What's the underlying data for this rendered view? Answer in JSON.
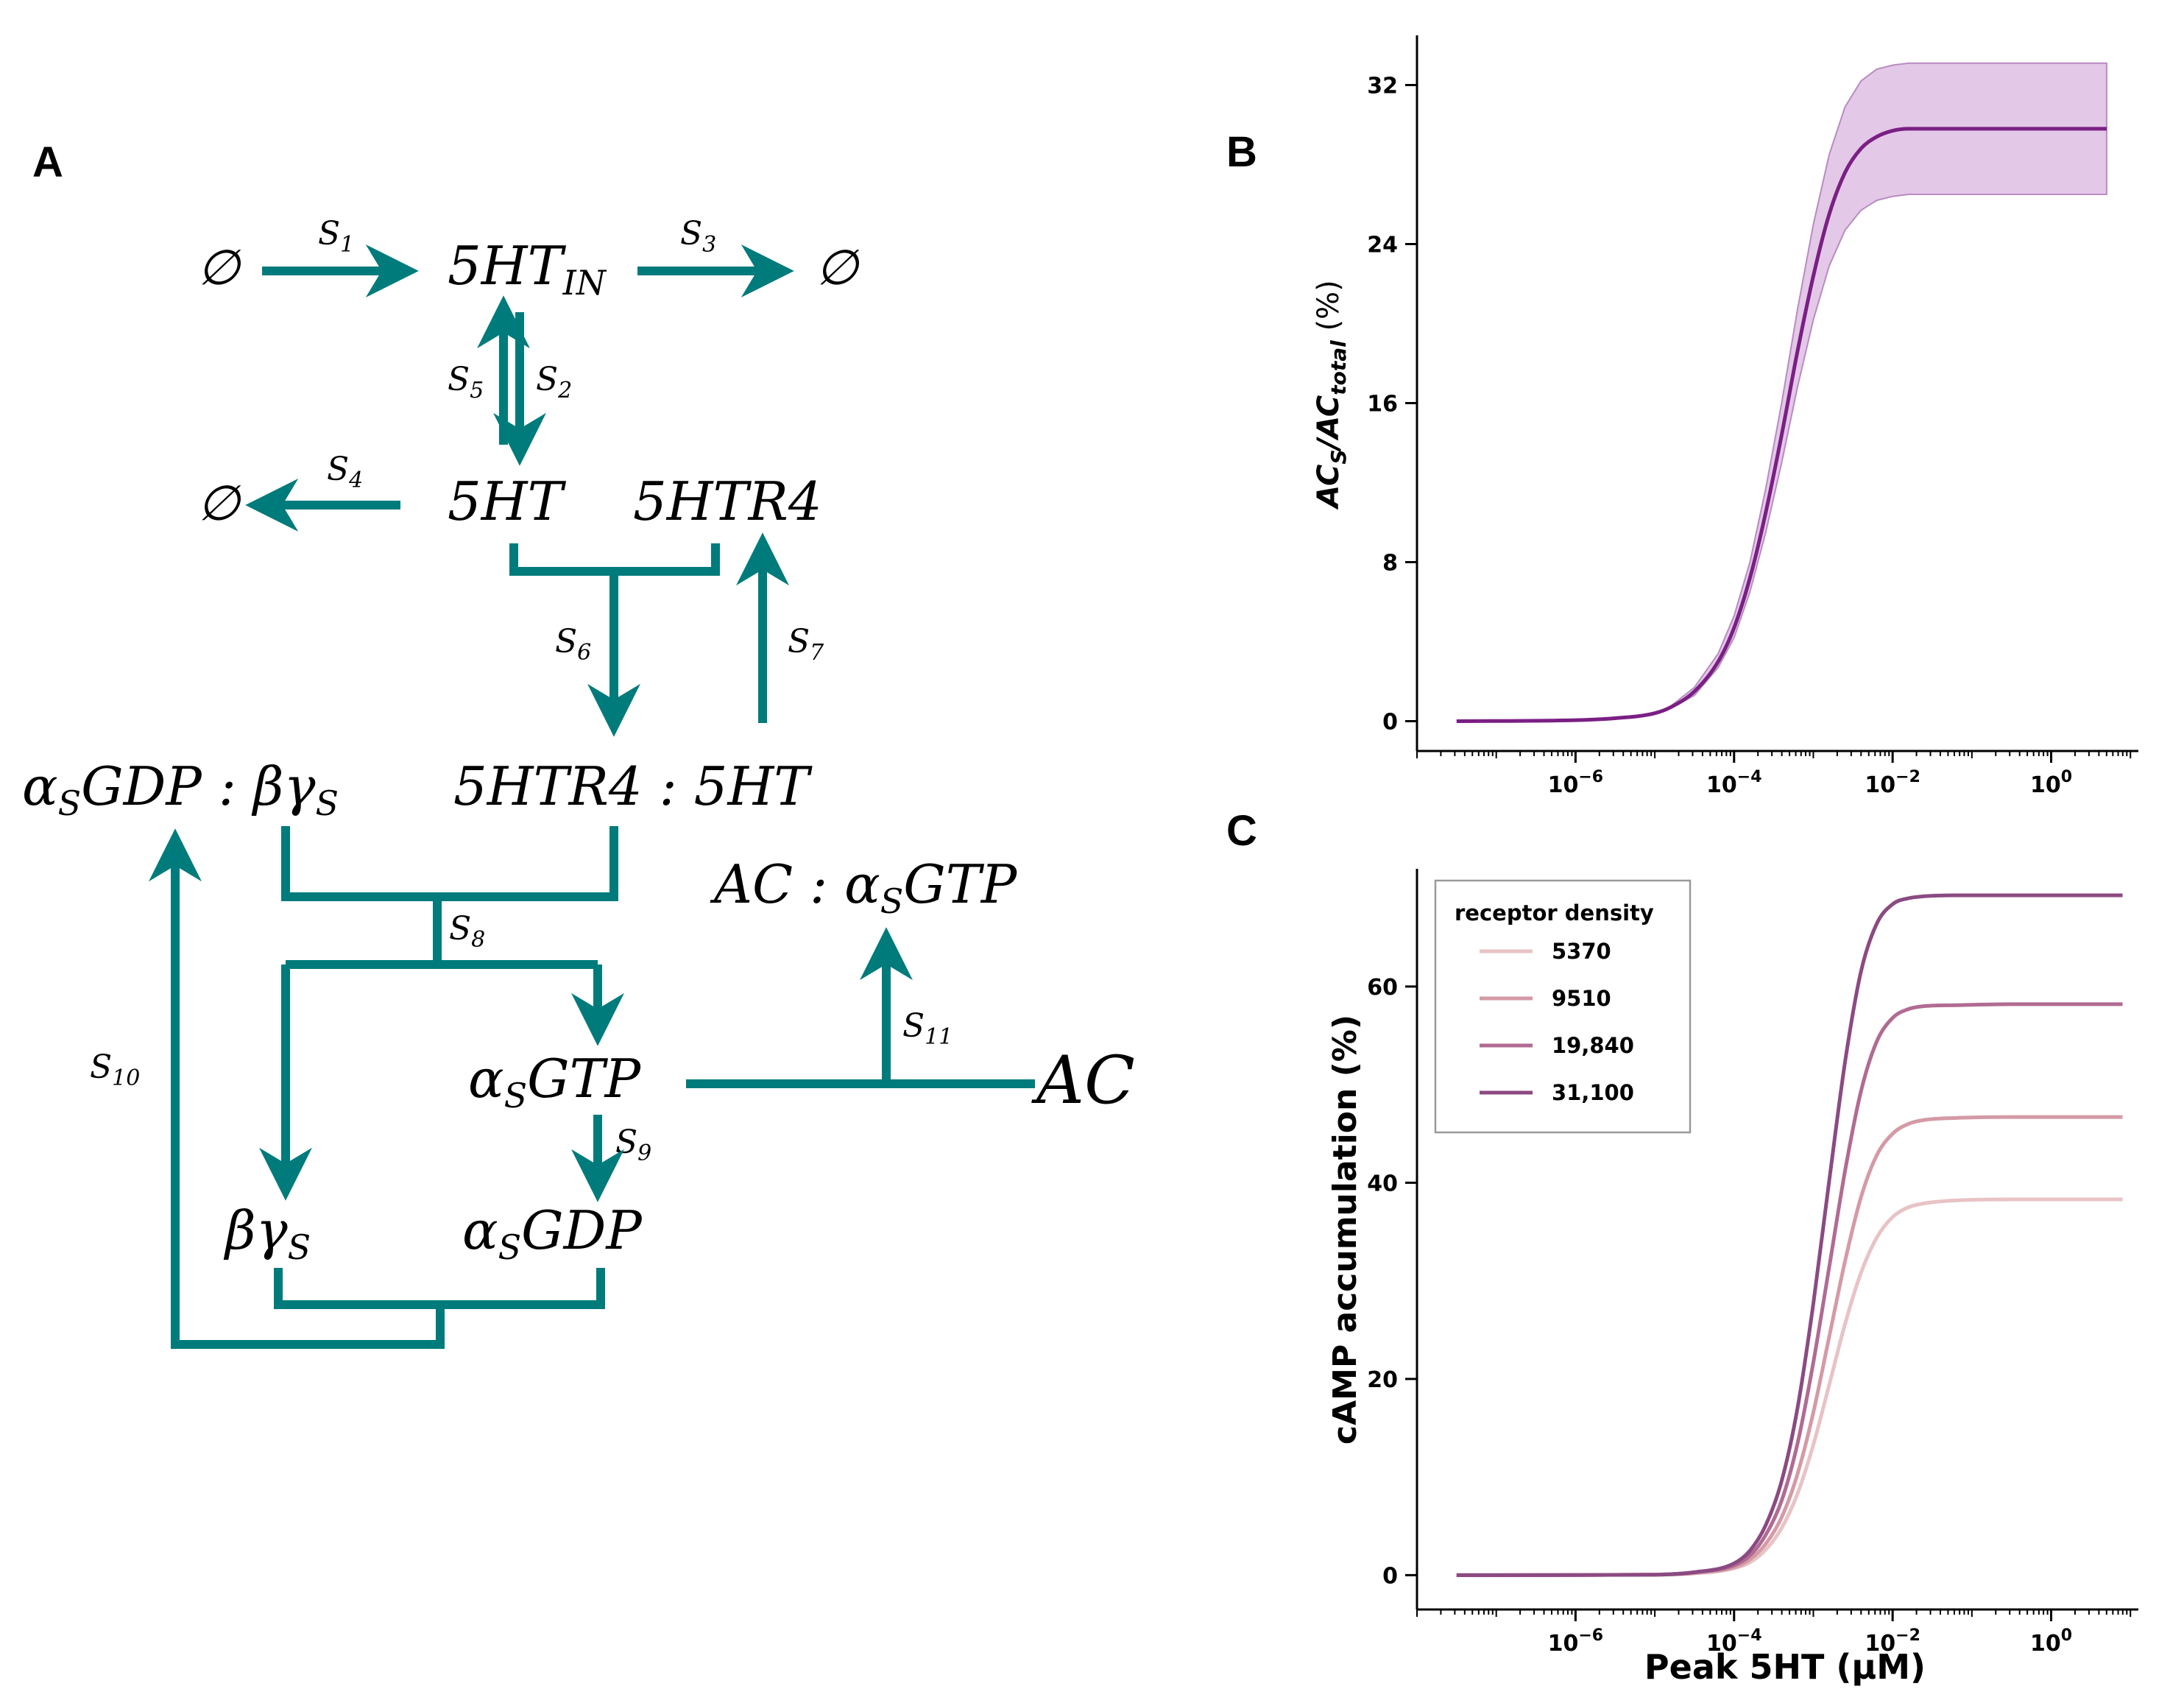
{
  "panels": {
    "a": "A",
    "b": "B",
    "c": "C"
  },
  "diagram": {
    "color": "#007b7b",
    "species": {
      "empty_left_top": "∅",
      "empty_right_top": "∅",
      "empty_left_mid": "∅",
      "ht_in": "5HT",
      "ht_in_sub": "IN",
      "ht": "5HT",
      "htr4": "5HTR4",
      "gdp_bg_a": "α",
      "gdp_bg_sub1": "S",
      "gdp_bg_b": "GDP : βγ",
      "gdp_bg_sub2": "S",
      "htr4_ht": "5HTR4 : 5HT",
      "ac_gtp_a": "AC : α",
      "ac_gtp_sub": "S",
      "ac_gtp_b": "GTP",
      "gtp_a": "α",
      "gtp_sub": "S",
      "gtp_b": "GTP",
      "ac": "AC",
      "bg_a": "βγ",
      "bg_sub": "S",
      "gdp_a": "α",
      "gdp_sub": "S",
      "gdp_b": "GDP"
    },
    "rates": [
      {
        "s": "S",
        "n": "1"
      },
      {
        "s": "S",
        "n": "2"
      },
      {
        "s": "S",
        "n": "3"
      },
      {
        "s": "S",
        "n": "4"
      },
      {
        "s": "S",
        "n": "5"
      },
      {
        "s": "S",
        "n": "6"
      },
      {
        "s": "S",
        "n": "7"
      },
      {
        "s": "S",
        "n": "8"
      },
      {
        "s": "S",
        "n": "9"
      },
      {
        "s": "S",
        "n": "10"
      },
      {
        "s": "S",
        "n": "11"
      }
    ]
  },
  "chart_data": [
    {
      "panel": "B",
      "type": "line",
      "title": "",
      "xlabel": "",
      "ylabel_parts": {
        "ac": "AC",
        "sub1": "S",
        "slash": "/AC",
        "sub2": "total",
        "unit": " (%)"
      },
      "xscale": "log",
      "xlim_log10": [
        -8,
        1.1
      ],
      "ylim": [
        -1.5,
        34.5
      ],
      "yticks": [
        0,
        8,
        16,
        24,
        32
      ],
      "ytick_labels": [
        "0",
        "8",
        "16",
        "24",
        "32"
      ],
      "xticks_log10": [
        -6,
        -4,
        -2,
        0
      ],
      "xtick_labels": [
        {
          "base": "10",
          "exp": "−6"
        },
        {
          "base": "10",
          "exp": "−4"
        },
        {
          "base": "10",
          "exp": "−2"
        },
        {
          "base": "10",
          "exp": "0"
        }
      ],
      "color": "#7a1f84",
      "band_color": "#d9b5df",
      "series": {
        "x_log10": [
          -7.5,
          -6,
          -5.5,
          -5,
          -4.8,
          -4.5,
          -4.2,
          -4,
          -3.8,
          -3.6,
          -3.4,
          -3.2,
          -3,
          -2.8,
          -2.6,
          -2.4,
          -2.2,
          -2,
          -1.8,
          -1.6,
          -1.2,
          -0.5,
          0.5,
          0.7
        ],
        "y": [
          0,
          0.05,
          0.15,
          0.4,
          0.7,
          1.5,
          3.0,
          4.7,
          7.2,
          10.5,
          14.4,
          18.6,
          22.4,
          25.5,
          27.6,
          28.8,
          29.4,
          29.7,
          29.8,
          29.8,
          29.8,
          29.8,
          29.8,
          29.8
        ],
        "y_lower": [
          0,
          0.05,
          0.15,
          0.4,
          0.65,
          1.3,
          2.7,
          4.2,
          6.5,
          9.5,
          13.0,
          16.8,
          20.2,
          22.9,
          24.7,
          25.7,
          26.2,
          26.4,
          26.5,
          26.5,
          26.5,
          26.5,
          26.5,
          26.5
        ],
        "y_upper": [
          0,
          0.05,
          0.15,
          0.4,
          0.75,
          1.7,
          3.4,
          5.3,
          8.0,
          11.7,
          16.0,
          20.7,
          25.0,
          28.5,
          30.9,
          32.2,
          32.8,
          33.0,
          33.1,
          33.1,
          33.1,
          33.1,
          33.1,
          33.1
        ]
      }
    },
    {
      "panel": "C",
      "type": "line",
      "title": "",
      "xlabel": "Peak 5HT (μM)",
      "ylabel": "cAMP accumulation (%)",
      "xscale": "log",
      "xlim_log10": [
        -8,
        1.1
      ],
      "ylim": [
        -3.5,
        72
      ],
      "yticks": [
        0,
        20,
        40,
        60
      ],
      "ytick_labels": [
        "0",
        "20",
        "40",
        "60"
      ],
      "xticks_log10": [
        -6,
        -4,
        -2,
        0
      ],
      "xtick_labels": [
        {
          "base": "10",
          "exp": "−6"
        },
        {
          "base": "10",
          "exp": "−4"
        },
        {
          "base": "10",
          "exp": "−2"
        },
        {
          "base": "10",
          "exp": "0"
        }
      ],
      "legend": {
        "title": "receptor density",
        "position": "upper-left"
      },
      "x_log10": [
        -7.5,
        -5,
        -4.5,
        -4,
        -3.8,
        -3.6,
        -3.4,
        -3.2,
        -3,
        -2.8,
        -2.6,
        -2.4,
        -2.2,
        -2,
        -1.8,
        -1.6,
        -1.2,
        -0.5,
        0.5,
        0.9
      ],
      "series": [
        {
          "name": "5370",
          "color": "#e8c3c5",
          "values": [
            0,
            0.05,
            0.2,
            0.7,
            1.3,
            2.6,
            4.8,
            8.3,
            13.3,
            19.4,
            25.6,
            30.8,
            34.4,
            36.5,
            37.5,
            37.9,
            38.2,
            38.3,
            38.3,
            38.3
          ]
        },
        {
          "name": "9510",
          "color": "#d49aa6",
          "values": [
            0,
            0.05,
            0.2,
            0.8,
            1.6,
            3.2,
            5.9,
            10.3,
            16.6,
            24.3,
            32.0,
            38.5,
            42.8,
            45.0,
            46.0,
            46.4,
            46.6,
            46.7,
            46.7,
            46.7
          ]
        },
        {
          "name": "19,840",
          "color": "#b16b92",
          "values": [
            0,
            0.05,
            0.3,
            1.0,
            2.0,
            4.1,
            7.6,
            13.4,
            21.7,
            31.4,
            41.2,
            49.3,
            54.4,
            56.8,
            57.7,
            58.0,
            58.1,
            58.2,
            58.2,
            58.2
          ]
        },
        {
          "name": "31,100",
          "color": "#8b4a82",
          "values": [
            0,
            0.05,
            0.3,
            1.2,
            2.5,
            5.1,
            9.6,
            17.0,
            27.7,
            40.2,
            52.3,
            61.5,
            66.4,
            68.4,
            69.0,
            69.2,
            69.3,
            69.3,
            69.3,
            69.3
          ]
        }
      ]
    }
  ]
}
